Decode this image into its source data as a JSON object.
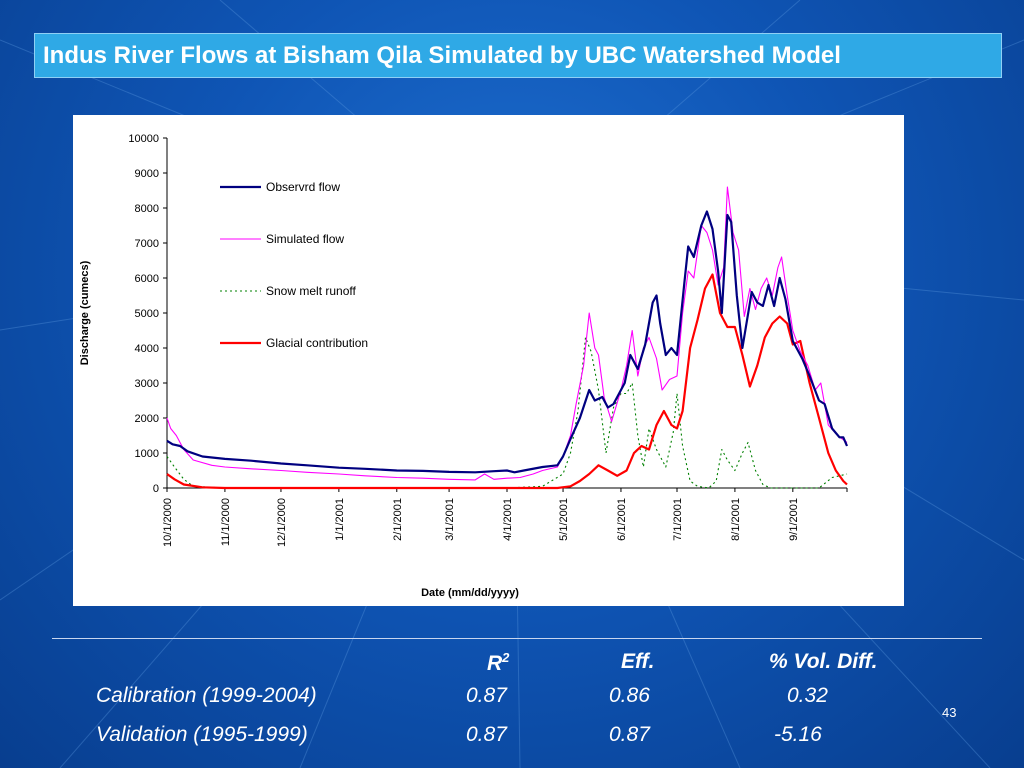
{
  "slide": {
    "title": "Indus River Flows at Bisham Qila Simulated by UBC Watershed Model",
    "page_number": "43"
  },
  "stats_table": {
    "headers": [
      "R",
      "Eff.",
      "% Vol. Diff."
    ],
    "r_superscript": "2",
    "rows": [
      {
        "label": "Calibration (1999-2004)",
        "r2": "0.87",
        "eff": "0.86",
        "vol_diff": "0.32"
      },
      {
        "label": "Validation  (1995-1999)",
        "r2": "0.87",
        "eff": "0.87",
        "vol_diff": "-5.16"
      }
    ]
  },
  "chart_data": {
    "type": "line",
    "title": "",
    "xlabel": "Date  (mm/dd/yyyy)",
    "ylabel": "Discharge (cumecs)",
    "ylim": [
      0,
      10000
    ],
    "yticks": [
      "0",
      "1000",
      "2000",
      "3000",
      "4000",
      "5000",
      "6000",
      "7000",
      "8000",
      "9000",
      "10000"
    ],
    "xlim": [
      "10/1/2000",
      "9/30/2001"
    ],
    "xticks": [
      "10/1/2000",
      "11/1/2000",
      "12/1/2000",
      "1/1/2001",
      "2/1/2001",
      "3/1/2001",
      "4/1/2001",
      "5/1/2001",
      "6/1/2001",
      "7/1/2001",
      "8/1/2001",
      "9/1/2001"
    ],
    "grid": false,
    "legend_position": "top-left",
    "series": [
      {
        "name": "Observrd flow",
        "color": "#000080",
        "style": "solid",
        "points": [
          [
            "10/1/2000",
            1350
          ],
          [
            "10/4/2000",
            1250
          ],
          [
            "10/8/2000",
            1200
          ],
          [
            "10/12/2000",
            1050
          ],
          [
            "10/20/2000",
            900
          ],
          [
            "11/1/2000",
            830
          ],
          [
            "11/15/2000",
            780
          ],
          [
            "12/1/2000",
            700
          ],
          [
            "12/15/2000",
            650
          ],
          [
            "1/1/2001",
            580
          ],
          [
            "1/15/2001",
            550
          ],
          [
            "2/1/2001",
            500
          ],
          [
            "2/15/2001",
            490
          ],
          [
            "3/1/2001",
            460
          ],
          [
            "3/15/2001",
            450
          ],
          [
            "3/25/2001",
            480
          ],
          [
            "4/1/2001",
            500
          ],
          [
            "4/5/2001",
            450
          ],
          [
            "4/10/2001",
            500
          ],
          [
            "4/20/2001",
            600
          ],
          [
            "4/28/2001",
            650
          ],
          [
            "5/1/2001",
            900
          ],
          [
            "5/5/2001",
            1400
          ],
          [
            "5/10/2001",
            2000
          ],
          [
            "5/15/2001",
            2800
          ],
          [
            "5/18/2001",
            2500
          ],
          [
            "5/22/2001",
            2600
          ],
          [
            "5/25/2001",
            2300
          ],
          [
            "5/28/2001",
            2400
          ],
          [
            "6/3/2001",
            3000
          ],
          [
            "6/6/2001",
            3800
          ],
          [
            "6/10/2001",
            3400
          ],
          [
            "6/14/2001",
            4100
          ],
          [
            "6/18/2001",
            5300
          ],
          [
            "6/20/2001",
            5500
          ],
          [
            "6/22/2001",
            4700
          ],
          [
            "6/25/2001",
            3800
          ],
          [
            "6/28/2001",
            4000
          ],
          [
            "7/1/2001",
            3800
          ],
          [
            "7/5/2001",
            5900
          ],
          [
            "7/7/2001",
            6900
          ],
          [
            "7/10/2001",
            6600
          ],
          [
            "7/14/2001",
            7500
          ],
          [
            "7/17/2001",
            7900
          ],
          [
            "7/20/2001",
            7400
          ],
          [
            "7/23/2001",
            6200
          ],
          [
            "7/25/2001",
            5000
          ],
          [
            "7/28/2001",
            7800
          ],
          [
            "7/30/2001",
            7600
          ],
          [
            "8/2/2001",
            5500
          ],
          [
            "8/5/2001",
            4000
          ],
          [
            "8/10/2001",
            5600
          ],
          [
            "8/13/2001",
            5300
          ],
          [
            "8/16/2001",
            5200
          ],
          [
            "8/19/2001",
            5800
          ],
          [
            "8/22/2001",
            5200
          ],
          [
            "8/25/2001",
            6000
          ],
          [
            "8/28/2001",
            5400
          ],
          [
            "9/1/2001",
            4200
          ],
          [
            "9/6/2001",
            3700
          ],
          [
            "9/10/2001",
            3200
          ],
          [
            "9/15/2001",
            2500
          ],
          [
            "9/18/2001",
            2400
          ],
          [
            "9/22/2001",
            1700
          ],
          [
            "9/26/2001",
            1450
          ],
          [
            "9/28/2001",
            1450
          ],
          [
            "9/30/2001",
            1200
          ]
        ]
      },
      {
        "name": "Simulated flow",
        "color": "#ff00ff",
        "style": "solid",
        "points": [
          [
            "10/1/2000",
            2000
          ],
          [
            "10/3/2000",
            1700
          ],
          [
            "10/6/2000",
            1500
          ],
          [
            "10/10/2000",
            1100
          ],
          [
            "10/15/2000",
            800
          ],
          [
            "10/25/2000",
            650
          ],
          [
            "11/1/2000",
            600
          ],
          [
            "11/15/2000",
            550
          ],
          [
            "12/1/2000",
            500
          ],
          [
            "12/15/2000",
            450
          ],
          [
            "1/1/2001",
            400
          ],
          [
            "1/15/2001",
            350
          ],
          [
            "2/1/2001",
            300
          ],
          [
            "2/15/2001",
            280
          ],
          [
            "3/1/2001",
            250
          ],
          [
            "3/15/2001",
            230
          ],
          [
            "3/20/2001",
            400
          ],
          [
            "3/25/2001",
            250
          ],
          [
            "4/1/2001",
            280
          ],
          [
            "4/8/2001",
            300
          ],
          [
            "4/15/2001",
            400
          ],
          [
            "4/20/2001",
            500
          ],
          [
            "4/28/2001",
            600
          ],
          [
            "5/1/2001",
            900
          ],
          [
            "5/5/2001",
            1500
          ],
          [
            "5/8/2001",
            2400
          ],
          [
            "5/12/2001",
            3500
          ],
          [
            "5/15/2001",
            5000
          ],
          [
            "5/18/2001",
            4000
          ],
          [
            "5/20/2001",
            3800
          ],
          [
            "5/23/2001",
            2600
          ],
          [
            "5/27/2001",
            1900
          ],
          [
            "6/1/2001",
            2800
          ],
          [
            "6/4/2001",
            3500
          ],
          [
            "6/7/2001",
            4500
          ],
          [
            "6/10/2001",
            3200
          ],
          [
            "6/13/2001",
            4000
          ],
          [
            "6/16/2001",
            4300
          ],
          [
            "6/20/2001",
            3700
          ],
          [
            "6/23/2001",
            2800
          ],
          [
            "6/27/2001",
            3100
          ],
          [
            "7/1/2001",
            3200
          ],
          [
            "7/4/2001",
            5000
          ],
          [
            "7/7/2001",
            6200
          ],
          [
            "7/10/2001",
            6000
          ],
          [
            "7/14/2001",
            7500
          ],
          [
            "7/17/2001",
            7300
          ],
          [
            "7/20/2001",
            6800
          ],
          [
            "7/23/2001",
            5800
          ],
          [
            "7/26/2001",
            6300
          ],
          [
            "7/28/2001",
            8600
          ],
          [
            "7/31/2001",
            7300
          ],
          [
            "8/3/2001",
            6800
          ],
          [
            "8/6/2001",
            4900
          ],
          [
            "8/9/2001",
            5700
          ],
          [
            "8/12/2001",
            5100
          ],
          [
            "8/15/2001",
            5700
          ],
          [
            "8/18/2001",
            6000
          ],
          [
            "8/21/2001",
            5500
          ],
          [
            "8/24/2001",
            6300
          ],
          [
            "8/26/2001",
            6600
          ],
          [
            "8/29/2001",
            5500
          ],
          [
            "9/1/2001",
            4500
          ],
          [
            "9/5/2001",
            3900
          ],
          [
            "9/9/2001",
            3500
          ],
          [
            "9/13/2001",
            2800
          ],
          [
            "9/16/2001",
            3000
          ],
          [
            "9/20/2001",
            1800
          ],
          [
            "9/25/2001",
            1500
          ],
          [
            "9/30/2001",
            1300
          ]
        ]
      },
      {
        "name": "Snow melt runoff",
        "color": "#008000",
        "style": "dotted",
        "points": [
          [
            "10/1/2000",
            900
          ],
          [
            "10/5/2000",
            600
          ],
          [
            "10/10/2000",
            250
          ],
          [
            "10/15/2000",
            50
          ],
          [
            "11/1/2000",
            0
          ],
          [
            "4/1/2001",
            0
          ],
          [
            "4/20/2001",
            50
          ],
          [
            "5/1/2001",
            400
          ],
          [
            "5/5/2001",
            1000
          ],
          [
            "5/9/2001",
            2200
          ],
          [
            "5/13/2001",
            4300
          ],
          [
            "5/16/2001",
            3900
          ],
          [
            "5/20/2001",
            2800
          ],
          [
            "5/24/2001",
            1000
          ],
          [
            "5/28/2001",
            2300
          ],
          [
            "6/1/2001",
            2700
          ],
          [
            "6/4/2001",
            2700
          ],
          [
            "6/7/2001",
            3000
          ],
          [
            "6/10/2001",
            1500
          ],
          [
            "6/13/2001",
            600
          ],
          [
            "6/16/2001",
            1700
          ],
          [
            "6/20/2001",
            1100
          ],
          [
            "6/25/2001",
            600
          ],
          [
            "6/29/2001",
            1600
          ],
          [
            "7/1/2001",
            2700
          ],
          [
            "7/4/2001",
            1200
          ],
          [
            "7/8/2001",
            200
          ],
          [
            "7/12/2001",
            50
          ],
          [
            "7/18/2001",
            0
          ],
          [
            "7/22/2001",
            200
          ],
          [
            "7/25/2001",
            1100
          ],
          [
            "7/28/2001",
            800
          ],
          [
            "8/1/2001",
            500
          ],
          [
            "8/5/2001",
            1000
          ],
          [
            "8/8/2001",
            1300
          ],
          [
            "8/12/2001",
            500
          ],
          [
            "8/16/2001",
            100
          ],
          [
            "8/20/2001",
            0
          ],
          [
            "9/1/2001",
            0
          ],
          [
            "9/15/2001",
            0
          ],
          [
            "9/22/2001",
            300
          ],
          [
            "9/26/2001",
            350
          ],
          [
            "9/30/2001",
            400
          ]
        ]
      },
      {
        "name": "Glacial contribution",
        "color": "#ff0000",
        "style": "solid",
        "points": [
          [
            "10/1/2000",
            400
          ],
          [
            "10/5/2000",
            250
          ],
          [
            "10/10/2000",
            100
          ],
          [
            "10/20/2000",
            20
          ],
          [
            "11/1/2000",
            0
          ],
          [
            "4/1/2001",
            0
          ],
          [
            "4/28/2001",
            0
          ],
          [
            "5/5/2001",
            50
          ],
          [
            "5/10/2001",
            200
          ],
          [
            "5/15/2001",
            400
          ],
          [
            "5/20/2001",
            650
          ],
          [
            "5/25/2001",
            500
          ],
          [
            "5/30/2001",
            350
          ],
          [
            "6/4/2001",
            500
          ],
          [
            "6/8/2001",
            1000
          ],
          [
            "6/12/2001",
            1200
          ],
          [
            "6/16/2001",
            1100
          ],
          [
            "6/20/2001",
            1800
          ],
          [
            "6/24/2001",
            2200
          ],
          [
            "6/28/2001",
            1800
          ],
          [
            "7/1/2001",
            1700
          ],
          [
            "7/4/2001",
            2200
          ],
          [
            "7/8/2001",
            4000
          ],
          [
            "7/12/2001",
            4800
          ],
          [
            "7/16/2001",
            5700
          ],
          [
            "7/20/2001",
            6100
          ],
          [
            "7/24/2001",
            5000
          ],
          [
            "7/28/2001",
            4600
          ],
          [
            "8/1/2001",
            4600
          ],
          [
            "8/5/2001",
            3800
          ],
          [
            "8/9/2001",
            2900
          ],
          [
            "8/13/2001",
            3500
          ],
          [
            "8/17/2001",
            4300
          ],
          [
            "8/21/2001",
            4700
          ],
          [
            "8/25/2001",
            4900
          ],
          [
            "8/29/2001",
            4700
          ],
          [
            "9/1/2001",
            4100
          ],
          [
            "9/5/2001",
            4200
          ],
          [
            "9/10/2001",
            3000
          ],
          [
            "9/15/2001",
            2000
          ],
          [
            "9/20/2001",
            1000
          ],
          [
            "9/24/2001",
            500
          ],
          [
            "9/28/2001",
            200
          ],
          [
            "9/30/2001",
            100
          ]
        ]
      }
    ]
  }
}
